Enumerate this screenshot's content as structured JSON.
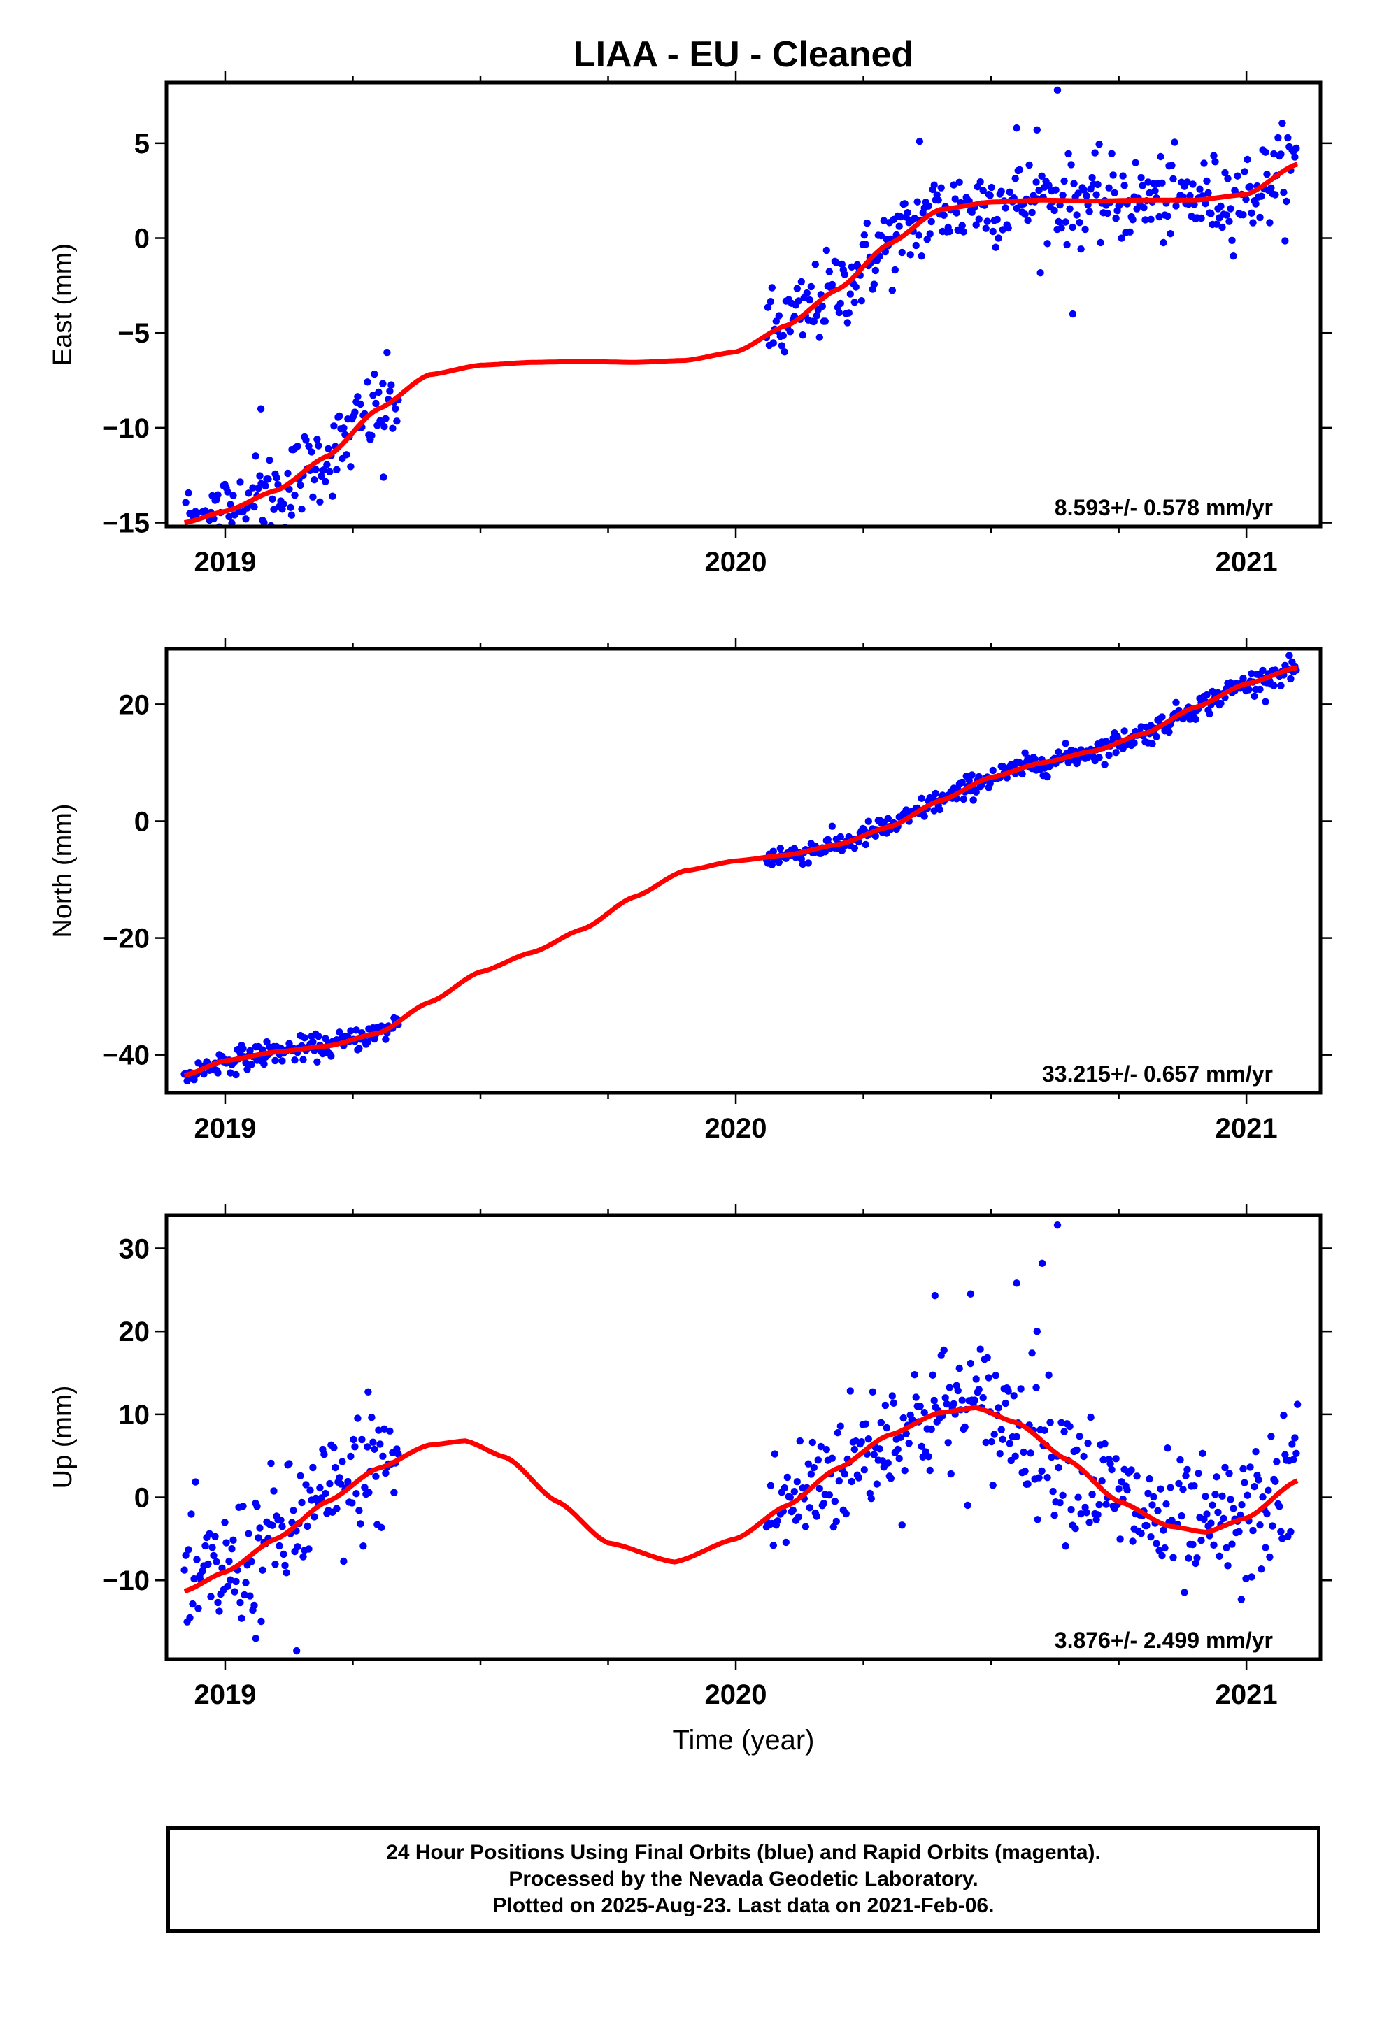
{
  "title": "LIAA  - EU - Cleaned",
  "x_axis_label": "Time (year)",
  "footer": {
    "lines": [
      "24 Hour Positions Using Final Orbits (blue) and Rapid Orbits (magenta).",
      "Processed by the Nevada Geodetic Laboratory.",
      "Plotted on 2025-Aug-23. Last data on 2021-Feb-06."
    ]
  },
  "colors": {
    "points": "#0000ff",
    "fit": "#ff0000",
    "frame": "#000000"
  },
  "chart_data": [
    {
      "type": "scatter",
      "panel": "east",
      "ylabel": "East (mm)",
      "xlim": [
        2018.885,
        2021.145
      ],
      "ylim": [
        -15.2,
        8.2
      ],
      "xticks": [
        2019,
        2020,
        2021
      ],
      "yticks": [
        -15,
        -10,
        -5,
        0,
        5
      ],
      "rate_text": "8.593+/- 0.578 mm/yr",
      "segments": [
        [
          2018.92,
          2019.34
        ],
        [
          2020.06,
          2021.1
        ]
      ],
      "noise": 1.1,
      "fit": {
        "x": [
          2018.92,
          2019.0,
          2019.1,
          2019.2,
          2019.3,
          2019.4,
          2019.5,
          2019.6,
          2019.7,
          2019.8,
          2019.9,
          2020.0,
          2020.1,
          2020.2,
          2020.3,
          2020.4,
          2020.5,
          2020.6,
          2020.7,
          2020.8,
          2020.9,
          2021.0,
          2021.1
        ],
        "y": [
          -15.0,
          -14.4,
          -13.3,
          -11.5,
          -9.0,
          -7.2,
          -6.7,
          -6.55,
          -6.5,
          -6.55,
          -6.45,
          -6.0,
          -4.6,
          -2.7,
          -0.3,
          1.5,
          1.9,
          2.0,
          1.95,
          2.0,
          2.0,
          2.3,
          3.9
        ]
      },
      "outliers": [
        [
          2020.63,
          7.8
        ],
        [
          2020.66,
          -4.0
        ],
        [
          2019.31,
          -12.6
        ],
        [
          2020.55,
          5.8
        ],
        [
          2020.59,
          5.7
        ],
        [
          2020.36,
          5.1
        ],
        [
          2019.07,
          -9.0
        ],
        [
          2019.13,
          -14.6
        ]
      ]
    },
    {
      "type": "scatter",
      "panel": "north",
      "ylabel": "North (mm)",
      "xlim": [
        2018.885,
        2021.145
      ],
      "ylim": [
        -46.5,
        29.5
      ],
      "xticks": [
        2019,
        2020,
        2021
      ],
      "yticks": [
        -40,
        -20,
        0,
        20
      ],
      "rate_text": "33.215+/- 0.657 mm/yr",
      "segments": [
        [
          2018.92,
          2019.34
        ],
        [
          2020.06,
          2021.1
        ]
      ],
      "noise": 1.0,
      "fit": {
        "x": [
          2018.92,
          2019.0,
          2019.1,
          2019.2,
          2019.3,
          2019.4,
          2019.5,
          2019.6,
          2019.7,
          2019.8,
          2019.9,
          2020.0,
          2020.1,
          2020.2,
          2020.3,
          2020.4,
          2020.5,
          2020.6,
          2020.7,
          2020.8,
          2020.9,
          2021.0,
          2021.1
        ],
        "y": [
          -43.5,
          -41.0,
          -39.5,
          -38.5,
          -36.3,
          -31.0,
          -25.8,
          -22.5,
          -18.5,
          -13.0,
          -8.5,
          -6.8,
          -5.8,
          -4.0,
          -1.0,
          3.5,
          7.5,
          10.0,
          12.0,
          15.0,
          19.5,
          23.5,
          26.3
        ]
      },
      "outliers": []
    },
    {
      "type": "scatter",
      "panel": "up",
      "ylabel": "Up (mm)",
      "xlim": [
        2018.885,
        2021.145
      ],
      "ylim": [
        -19.5,
        34.0
      ],
      "xticks": [
        2019,
        2020,
        2021
      ],
      "yticks": [
        -10,
        0,
        10,
        20,
        30
      ],
      "rate_text": "3.876+/- 2.499 mm/yr",
      "segments": [
        [
          2018.92,
          2019.34
        ],
        [
          2020.06,
          2021.1
        ]
      ],
      "noise": 4.0,
      "fit": {
        "x": [
          2018.92,
          2019.0,
          2019.1,
          2019.2,
          2019.3,
          2019.4,
          2019.47,
          2019.55,
          2019.65,
          2019.75,
          2019.88,
          2020.0,
          2020.1,
          2020.2,
          2020.3,
          2020.4,
          2020.47,
          2020.55,
          2020.65,
          2020.75,
          2020.85,
          2020.92,
          2021.0,
          2021.1
        ],
        "y": [
          -11.3,
          -9.0,
          -5.0,
          -0.5,
          3.5,
          6.3,
          6.8,
          4.8,
          -0.5,
          -5.5,
          -7.8,
          -5.0,
          -1.0,
          3.5,
          7.5,
          10.2,
          10.8,
          9.0,
          4.5,
          -0.5,
          -3.5,
          -4.2,
          -2.5,
          2.0
        ]
      },
      "outliers": [
        [
          2020.63,
          32.8
        ],
        [
          2020.6,
          28.2
        ],
        [
          2020.55,
          25.8
        ],
        [
          2020.39,
          24.3
        ],
        [
          2020.46,
          24.5
        ],
        [
          2020.59,
          20.0
        ],
        [
          2019.28,
          12.7
        ],
        [
          2019.14,
          -18.5
        ],
        [
          2019.06,
          -17.0
        ],
        [
          2020.99,
          -12.3
        ],
        [
          2021.1,
          11.2
        ]
      ]
    }
  ]
}
